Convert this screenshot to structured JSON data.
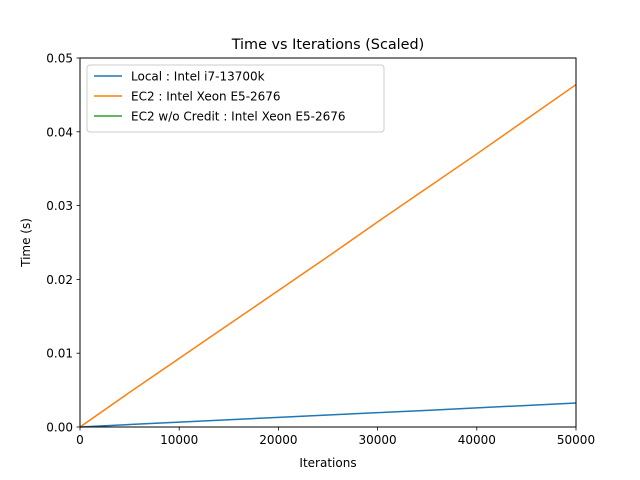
{
  "chart_data": {
    "type": "line",
    "title": "Time vs Iterations (Scaled)",
    "xlabel": "Iterations",
    "ylabel": "Time (s)",
    "xlim": [
      0,
      50000
    ],
    "ylim": [
      0,
      0.05
    ],
    "x_ticks": [
      0,
      10000,
      20000,
      30000,
      40000,
      50000
    ],
    "x_tick_labels": [
      "0",
      "10000",
      "20000",
      "30000",
      "40000",
      "50000"
    ],
    "y_ticks": [
      0,
      0.01,
      0.02,
      0.03,
      0.04,
      0.05
    ],
    "y_tick_labels": [
      "0.00",
      "0.01",
      "0.02",
      "0.03",
      "0.04",
      "0.05"
    ],
    "grid": false,
    "legend_position": "upper-left",
    "series": [
      {
        "name": "Local : Intel i7-13700k",
        "color": "#1f77b4",
        "x": [
          0,
          5000,
          10000,
          15000,
          20000,
          25000,
          30000,
          35000,
          40000,
          45000,
          50000
        ],
        "y": [
          0,
          0.00033,
          0.00066,
          0.00099,
          0.0013,
          0.00162,
          0.00194,
          0.00226,
          0.00259,
          0.00292,
          0.00325
        ]
      },
      {
        "name": "EC2 : Intel Xeon E5-2676",
        "color": "#ff7f0e",
        "x": [
          0,
          5000,
          10000,
          15000,
          20000,
          25000,
          30000,
          35000,
          40000,
          45000,
          50000
        ],
        "y": [
          0,
          0.0047,
          0.0093,
          0.0139,
          0.0185,
          0.0231,
          0.0278,
          0.0324,
          0.037,
          0.0417,
          0.0464
        ]
      },
      {
        "name": "EC2 w/o Credit : Intel Xeon E5-2676",
        "color": "#2ca02c",
        "x": [],
        "y": []
      }
    ]
  }
}
